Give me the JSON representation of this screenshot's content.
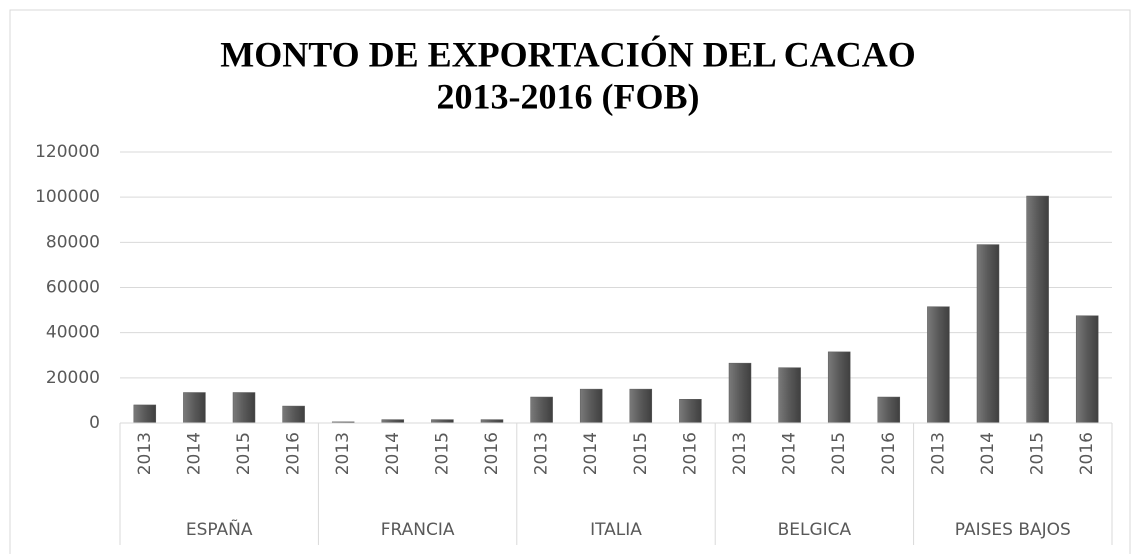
{
  "chart_data": {
    "type": "bar",
    "title": [
      "MONTO DE EXPORTACIÓN DEL CACAO",
      "2013-2016 (FOB)"
    ],
    "groups": [
      {
        "name": "ESPAÑA",
        "categories": [
          "2013",
          "2014",
          "2015",
          "2016"
        ]
      },
      {
        "name": "FRANCIA",
        "categories": [
          "2013",
          "2014",
          "2015",
          "2016"
        ]
      },
      {
        "name": "ITALIA",
        "categories": [
          "2013",
          "2014",
          "2015",
          "2016"
        ]
      },
      {
        "name": "BELGICA",
        "categories": [
          "2013",
          "2014",
          "2015",
          "2016"
        ]
      },
      {
        "name": "PAISES BAJOS",
        "categories": [
          "2013",
          "2014",
          "2015",
          "2016"
        ]
      }
    ],
    "values": [
      8000,
      13500,
      13500,
      7500,
      500,
      1500,
      1500,
      1500,
      11500,
      15000,
      15000,
      10500,
      26500,
      24500,
      31500,
      11500,
      51500,
      79000,
      100500,
      47500
    ],
    "color": "#595959",
    "ylim": [
      0,
      120000
    ],
    "yticks": [
      0,
      20000,
      40000,
      60000,
      80000,
      100000,
      120000
    ],
    "grid": true
  }
}
